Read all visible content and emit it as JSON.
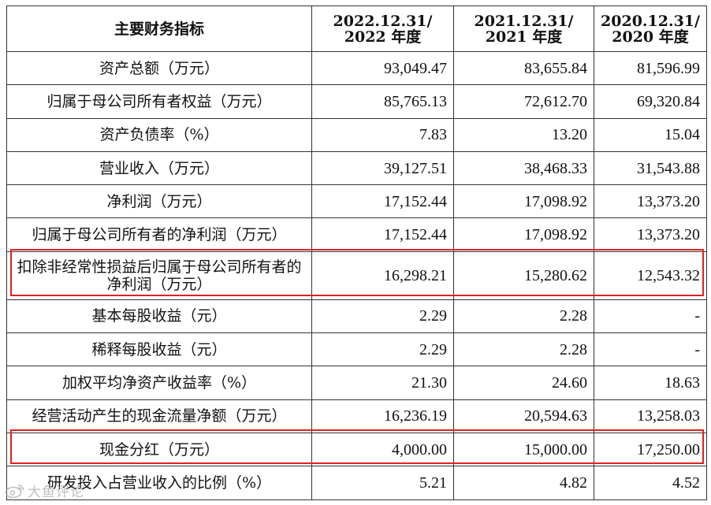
{
  "table": {
    "headers": [
      {
        "line1": "主要财务指标",
        "line2": ""
      },
      {
        "line1": "2022.12.31/",
        "line2": "2022 年度"
      },
      {
        "line1": "2021.12.31/",
        "line2": "2021 年度"
      },
      {
        "line1": "2020.12.31/",
        "line2": "2020 年度"
      }
    ],
    "rows": [
      {
        "label": "资产总额（万元）",
        "v2022": "93,049.47",
        "v2021": "83,655.84",
        "v2020": "81,596.99"
      },
      {
        "label": "归属于母公司所有者权益（万元）",
        "v2022": "85,765.13",
        "v2021": "72,612.70",
        "v2020": "69,320.84"
      },
      {
        "label": "资产负债率（%）",
        "v2022": "7.83",
        "v2021": "13.20",
        "v2020": "15.04"
      },
      {
        "label": "营业收入（万元）",
        "v2022": "39,127.51",
        "v2021": "38,468.33",
        "v2020": "31,543.88"
      },
      {
        "label": "净利润（万元）",
        "v2022": "17,152.44",
        "v2021": "17,098.92",
        "v2020": "13,373.20"
      },
      {
        "label": "归属于母公司所有者的净利润（万元）",
        "v2022": "17,152.44",
        "v2021": "17,098.92",
        "v2020": "13,373.20"
      },
      {
        "label": "扣除非经常性损益后归属于母公司所有者的净利润（万元）",
        "v2022": "16,298.21",
        "v2021": "15,280.62",
        "v2020": "12,543.32"
      },
      {
        "label": "基本每股收益（元）",
        "v2022": "2.29",
        "v2021": "2.28",
        "v2020": "-"
      },
      {
        "label": "稀释每股收益（元）",
        "v2022": "2.29",
        "v2021": "2.28",
        "v2020": "-"
      },
      {
        "label": "加权平均净资产收益率（%）",
        "v2022": "21.30",
        "v2021": "24.60",
        "v2020": "18.63"
      },
      {
        "label": "经营活动产生的现金流量净额（万元）",
        "v2022": "16,236.19",
        "v2021": "20,594.63",
        "v2020": "13,258.03"
      },
      {
        "label": "现金分红（万元）",
        "v2022": "4,000.00",
        "v2021": "15,000.00",
        "v2020": "17,250.00"
      },
      {
        "label": "研发投入占营业收入的比例（%）",
        "v2022": "5.21",
        "v2021": "4.82",
        "v2020": "4.52"
      }
    ]
  },
  "highlight_color": "#e02020",
  "watermark": {
    "text": "大鱼评论",
    "icon": "weibo-icon"
  }
}
